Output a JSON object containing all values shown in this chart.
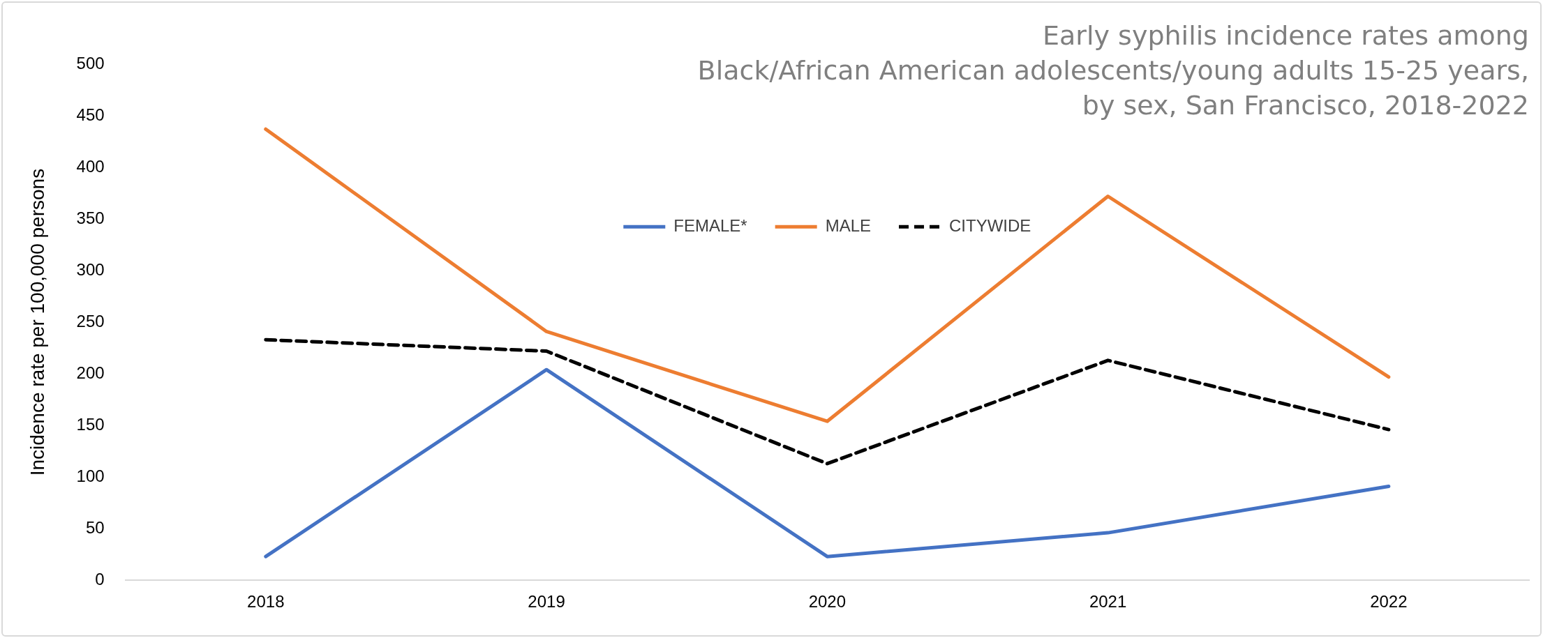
{
  "chart_data": {
    "type": "line",
    "title": "Early syphilis incidence rates among\nBlack/African American adolescents/young adults 15-25 years,\nby sex, San Francisco, 2018-2022",
    "ylabel": "Incidence rate per 100,000 persons",
    "categories": [
      "2018",
      "2019",
      "2020",
      "2021",
      "2022"
    ],
    "series": [
      {
        "name": "FEMALE*",
        "color": "#4472c4",
        "values": [
          23,
          204,
          23,
          46,
          91
        ]
      },
      {
        "name": "MALE",
        "color": "#ed7d31",
        "values": [
          437,
          241,
          154,
          372,
          197
        ]
      },
      {
        "name": "CITYWIDE",
        "color": "#000000",
        "values": [
          233,
          222,
          113,
          213,
          146
        ],
        "line_style": "dashed"
      }
    ],
    "ylim": [
      0,
      500
    ],
    "yticks": [
      0,
      50,
      100,
      150,
      200,
      250,
      300,
      350,
      400,
      450,
      500
    ],
    "grid": false,
    "legend": "top",
    "marker": "none"
  }
}
